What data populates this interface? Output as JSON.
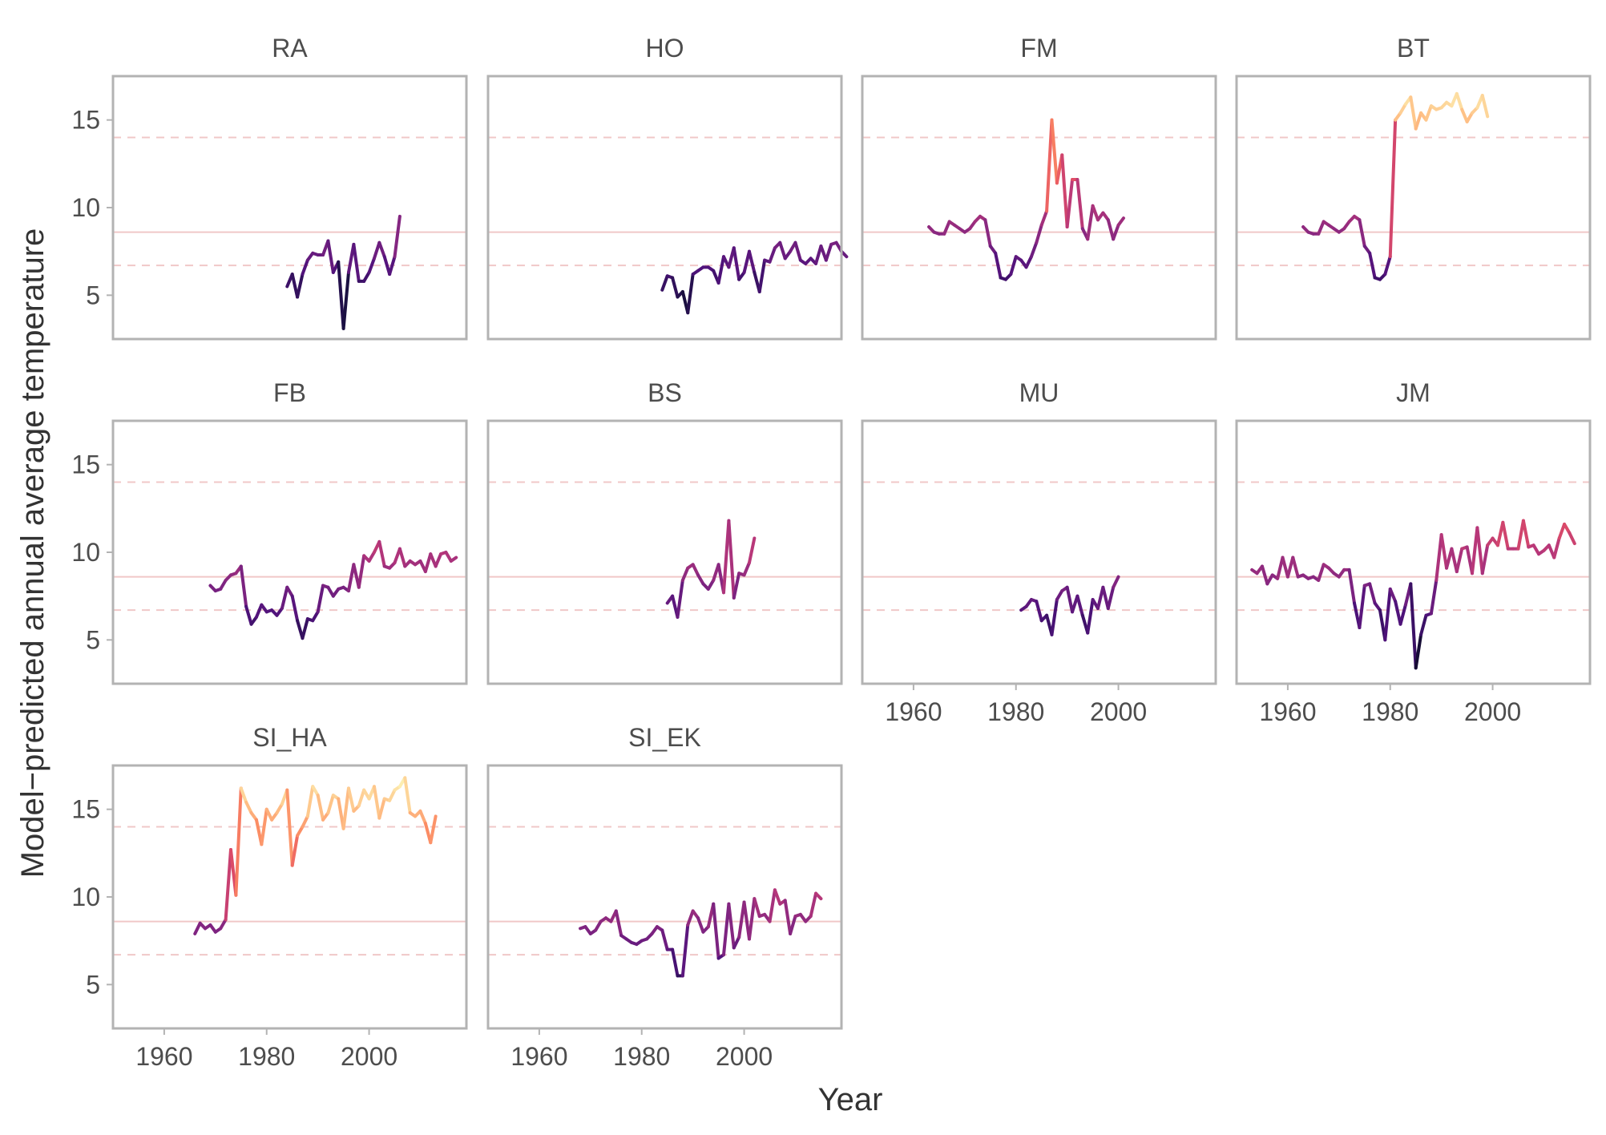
{
  "chart_data": {
    "type": "line",
    "xlabel": "Year",
    "ylabel": "Model−predicted annual average temperature",
    "xlim": [
      1950,
      2019
    ],
    "ylim": [
      2.5,
      17.5
    ],
    "x_ticks": [
      1960,
      1980,
      2000
    ],
    "y_ticks": [
      5,
      10,
      15
    ],
    "reference_lines": {
      "solid": 8.6,
      "dashed": [
        6.7,
        14.0
      ],
      "color": "#f0c8c8"
    },
    "color_scale": {
      "name": "magma",
      "domain": [
        3,
        17
      ]
    },
    "grid": false,
    "legend": "none",
    "facets": [
      {
        "title": "RA",
        "x_start": 1984,
        "values": [
          5.5,
          6.2,
          4.9,
          6.2,
          7.0,
          7.4,
          7.3,
          7.3,
          8.1,
          6.3,
          6.9,
          3.1,
          6.3,
          7.9,
          5.8,
          5.8,
          6.3,
          7.1,
          8.0,
          7.2,
          6.2,
          7.2,
          9.5
        ]
      },
      {
        "title": "HO",
        "x_start": 1984,
        "values": [
          5.3,
          6.1,
          6.0,
          4.9,
          5.2,
          4.0,
          6.2,
          6.4,
          6.6,
          6.6,
          6.4,
          5.7,
          7.2,
          6.6,
          7.7,
          5.9,
          6.3,
          7.5,
          6.3,
          5.2,
          7.0,
          6.9,
          7.7,
          8.0,
          7.1,
          7.5,
          8.0,
          7.0,
          6.8,
          7.1,
          6.8,
          7.8,
          7.0,
          7.9,
          8.0,
          7.5,
          7.2
        ]
      },
      {
        "title": "FM",
        "x_start": 1963,
        "values": [
          8.9,
          8.6,
          8.5,
          8.5,
          9.2,
          9.0,
          8.8,
          8.6,
          8.8,
          9.2,
          9.5,
          9.3,
          7.8,
          7.4,
          6.0,
          5.9,
          6.2,
          7.2,
          7.0,
          6.6,
          7.2,
          8.0,
          9.0,
          9.8,
          15.0,
          11.4,
          13.0,
          8.9,
          11.6,
          11.6,
          8.8,
          8.2,
          10.1,
          9.3,
          9.7,
          9.3,
          8.2,
          9.0,
          9.4
        ]
      },
      {
        "title": "BT",
        "x_start": 1963,
        "values": [
          8.9,
          8.6,
          8.5,
          8.5,
          9.2,
          9.0,
          8.8,
          8.6,
          8.8,
          9.2,
          9.5,
          9.3,
          7.8,
          7.4,
          6.0,
          5.9,
          6.2,
          7.2,
          15.0,
          15.4,
          15.9,
          16.3,
          14.5,
          15.4,
          15.0,
          15.8,
          15.6,
          15.7,
          16.0,
          15.8,
          16.5,
          15.6,
          14.9,
          15.4,
          15.7,
          16.4,
          15.2
        ]
      },
      {
        "title": "FB",
        "x_start": 1969,
        "values": [
          8.1,
          7.8,
          7.9,
          8.4,
          8.7,
          8.8,
          9.2,
          6.9,
          5.9,
          6.3,
          7.0,
          6.6,
          6.7,
          6.4,
          6.8,
          8.0,
          7.5,
          6.1,
          5.1,
          6.2,
          6.1,
          6.6,
          8.1,
          8.0,
          7.5,
          7.9,
          8.0,
          7.8,
          9.3,
          8.0,
          9.8,
          9.5,
          10.0,
          10.6,
          9.2,
          9.1,
          9.4,
          10.2,
          9.2,
          9.5,
          9.3,
          9.5,
          8.9,
          9.9,
          9.2,
          9.9,
          10.0,
          9.5,
          9.7
        ]
      },
      {
        "title": "BS",
        "x_start": 1985,
        "values": [
          7.1,
          7.5,
          6.3,
          8.4,
          9.1,
          9.3,
          8.7,
          8.2,
          7.9,
          8.4,
          9.3,
          7.7,
          11.8,
          7.4,
          8.8,
          8.7,
          9.4,
          10.8
        ]
      },
      {
        "title": "MU",
        "x_start": 1981,
        "values": [
          6.7,
          6.9,
          7.3,
          7.2,
          6.1,
          6.4,
          5.3,
          7.3,
          7.8,
          8.0,
          6.6,
          7.5,
          6.4,
          5.4,
          7.3,
          6.8,
          8.0,
          6.8,
          8.0,
          8.6
        ]
      },
      {
        "title": "JM",
        "x_start": 1953,
        "values": [
          9.0,
          8.8,
          9.2,
          8.2,
          8.7,
          8.5,
          9.7,
          8.6,
          9.7,
          8.6,
          8.7,
          8.5,
          8.6,
          8.4,
          9.3,
          9.1,
          8.8,
          8.6,
          9.0,
          9.0,
          7.1,
          5.7,
          8.1,
          8.2,
          7.1,
          6.7,
          5.0,
          7.9,
          7.2,
          5.9,
          7.0,
          8.2,
          3.4,
          5.3,
          6.4,
          6.5,
          8.4,
          11.0,
          9.1,
          10.2,
          8.9,
          10.2,
          10.3,
          8.8,
          11.4,
          8.8,
          10.4,
          10.8,
          10.4,
          11.7,
          10.2,
          10.2,
          10.2,
          11.8,
          10.3,
          10.4,
          9.9,
          10.1,
          10.4,
          9.7,
          10.8,
          11.6,
          11.1,
          10.5
        ]
      },
      {
        "title": "SI_HA",
        "x_start": 1966,
        "values": [
          7.9,
          8.5,
          8.2,
          8.4,
          8.0,
          8.2,
          8.7,
          12.7,
          10.1,
          16.2,
          15.4,
          14.8,
          14.4,
          13.0,
          15.0,
          14.4,
          14.8,
          15.3,
          16.1,
          11.8,
          13.5,
          14.0,
          14.6,
          16.3,
          15.8,
          14.4,
          14.8,
          15.8,
          15.6,
          13.9,
          16.2,
          14.9,
          15.2,
          16.1,
          15.6,
          16.3,
          14.5,
          15.6,
          15.5,
          16.1,
          16.3,
          16.8,
          14.8,
          14.6,
          14.9,
          14.2,
          13.1,
          14.6
        ]
      },
      {
        "title": "SI_EK",
        "x_start": 1968,
        "values": [
          8.2,
          8.3,
          7.9,
          8.1,
          8.6,
          8.8,
          8.6,
          9.2,
          7.8,
          7.6,
          7.4,
          7.3,
          7.5,
          7.6,
          7.9,
          8.3,
          8.1,
          7.0,
          7.0,
          5.5,
          5.5,
          8.4,
          9.2,
          8.8,
          8.0,
          8.3,
          9.6,
          6.5,
          6.7,
          9.6,
          7.1,
          7.7,
          9.7,
          7.6,
          9.9,
          8.9,
          9.0,
          8.6,
          10.4,
          9.6,
          9.8,
          7.9,
          8.9,
          9.0,
          8.6,
          8.9,
          10.2,
          9.9
        ]
      }
    ]
  }
}
